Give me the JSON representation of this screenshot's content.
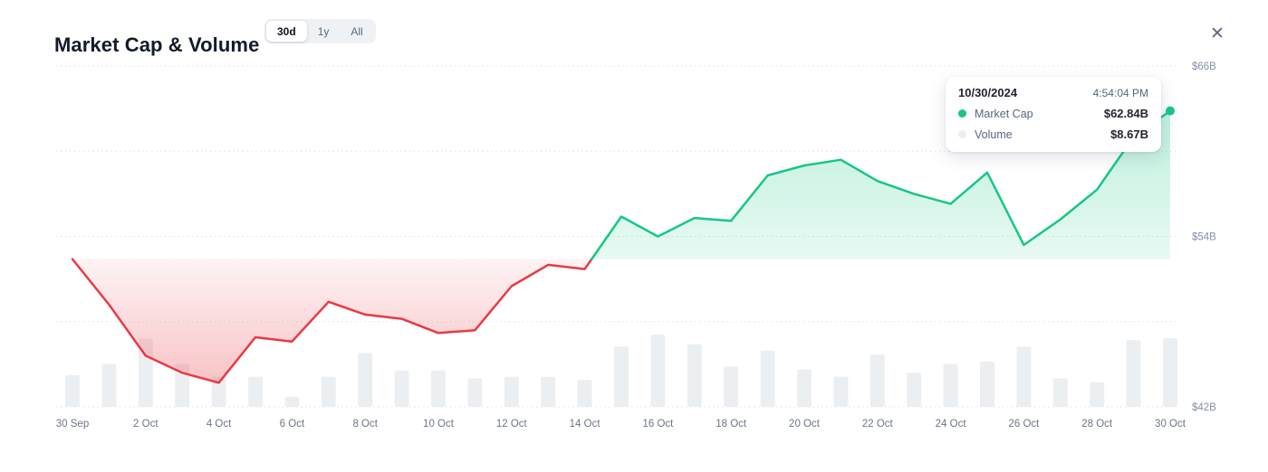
{
  "header": {
    "title": "Market Cap & Volume",
    "range_selector": {
      "options": [
        {
          "label": "30d",
          "selected": true
        },
        {
          "label": "1y",
          "selected": false
        },
        {
          "label": "All",
          "selected": false
        }
      ]
    },
    "close_label": "✕"
  },
  "tooltip": {
    "date": "10/30/2024",
    "time": "4:54:04 PM",
    "rows": [
      {
        "label": "Market Cap",
        "value": "$62.84B",
        "dot_color": "#16c784"
      },
      {
        "label": "Volume",
        "value": "$8.67B",
        "dot_color": "#eceff2"
      }
    ]
  },
  "chart_data": {
    "type": "area",
    "title": "Market Cap & Volume",
    "x": [
      "30 Sep",
      "1 Oct",
      "2 Oct",
      "3 Oct",
      "4 Oct",
      "5 Oct",
      "6 Oct",
      "7 Oct",
      "8 Oct",
      "9 Oct",
      "10 Oct",
      "11 Oct",
      "12 Oct",
      "13 Oct",
      "14 Oct",
      "15 Oct",
      "16 Oct",
      "17 Oct",
      "18 Oct",
      "19 Oct",
      "20 Oct",
      "21 Oct",
      "22 Oct",
      "23 Oct",
      "24 Oct",
      "25 Oct",
      "26 Oct",
      "27 Oct",
      "28 Oct",
      "29 Oct",
      "30 Oct"
    ],
    "x_tick_every": 2,
    "series": [
      {
        "name": "Market Cap",
        "type": "line-area",
        "unit": "$B",
        "color_up": "#16c784",
        "color_down": "#ea3943",
        "values": [
          52.4,
          49.2,
          45.6,
          44.4,
          43.7,
          46.9,
          46.6,
          49.4,
          48.5,
          48.2,
          47.2,
          47.4,
          50.5,
          52.0,
          51.7,
          55.4,
          54.0,
          55.3,
          55.1,
          58.3,
          59.0,
          59.4,
          57.9,
          57.0,
          56.3,
          58.5,
          53.4,
          55.2,
          57.3,
          61.0,
          62.84
        ]
      },
      {
        "name": "Volume",
        "type": "bar",
        "unit": "$B",
        "color": "#eceff2",
        "values": [
          4.0,
          5.4,
          8.6,
          5.4,
          3.8,
          3.8,
          1.3,
          3.8,
          6.8,
          4.6,
          4.6,
          3.6,
          3.8,
          3.8,
          3.4,
          7.6,
          9.1,
          7.9,
          5.1,
          7.1,
          4.7,
          3.8,
          6.6,
          4.3,
          5.4,
          5.7,
          7.6,
          3.6,
          3.1,
          8.4,
          8.67
        ]
      }
    ],
    "baseline_value": 52.4,
    "ylim": [
      42,
      66
    ],
    "volume_max": 9.8,
    "y_ticks": [
      {
        "value": 66,
        "label": "$66B"
      },
      {
        "value": 54,
        "label": "$54B"
      },
      {
        "value": 42,
        "label": "$42B"
      }
    ],
    "grid_values": [
      66,
      60,
      54,
      48,
      42
    ],
    "grid": "dotted-horizontal",
    "legend_position": "none",
    "last_point_marker": true
  }
}
